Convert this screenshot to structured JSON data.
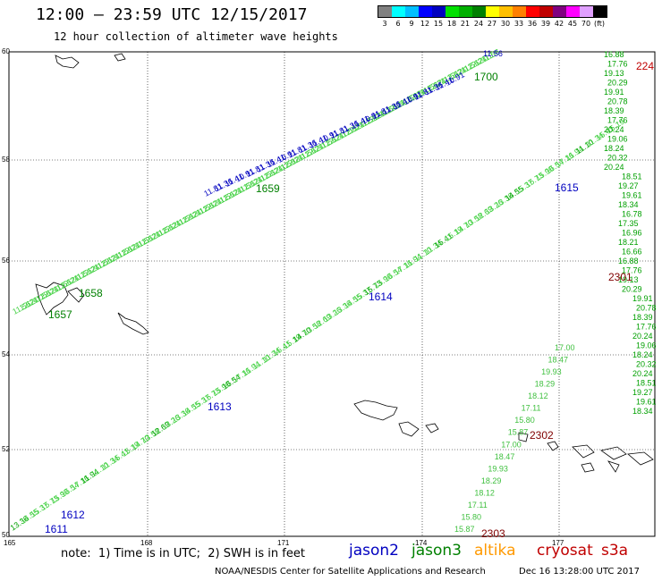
{
  "title": "12:00 – 23:59 UTC 12/15/2017",
  "subtitle": "12 hour collection of altimeter wave heights",
  "colorbar": {
    "colors": [
      "#808080",
      "#00ffff",
      "#00bfff",
      "#0000ff",
      "#0000c0",
      "#00e000",
      "#00b000",
      "#008000",
      "#ffff00",
      "#ffc000",
      "#ff8000",
      "#ff0000",
      "#c00000",
      "#800080",
      "#ff00ff",
      "#e0a0ff",
      "#000000"
    ],
    "labels": [
      "3",
      "6",
      "9",
      "12",
      "15",
      "18",
      "21",
      "24",
      "27",
      "30",
      "33",
      "36",
      "39",
      "42",
      "45",
      "70",
      "(ft)"
    ]
  },
  "axes": {
    "lat_labels": [
      "60",
      "58",
      "56",
      "54",
      "52",
      "50"
    ],
    "lon_labels": [
      "165",
      "168",
      "171",
      "174",
      "177"
    ]
  },
  "time_labels": [
    {
      "text": "1700",
      "sat": "jason3"
    },
    {
      "text": "1615",
      "sat": "jason2"
    },
    {
      "text": "1614",
      "sat": "jason2"
    },
    {
      "text": "1613",
      "sat": "jason2"
    },
    {
      "text": "1612",
      "sat": "jason2"
    },
    {
      "text": "1611",
      "sat": "jason2"
    },
    {
      "text": "1659",
      "sat": "jason3"
    },
    {
      "text": "1658",
      "sat": "jason3"
    },
    {
      "text": "1657",
      "sat": "jason3"
    },
    {
      "text": "2301",
      "sat": "cryosat"
    },
    {
      "text": "2302",
      "sat": "cryosat"
    },
    {
      "text": "2303",
      "sat": "cryosat"
    },
    {
      "text": "224",
      "sat": "s3a"
    }
  ],
  "swh_values": {
    "track_upper_top": [
      "11.56",
      "12.24",
      "12.12"
    ],
    "track_lower": [
      "13.36",
      "14.55",
      "15.37",
      "15.73",
      "15.90",
      "16.54",
      "17.16",
      "11.94",
      "11.10",
      "11.34",
      "15.41",
      "15.19",
      "14.70",
      "13.58",
      "12.69",
      "13.26"
    ],
    "track_east": [
      "16.88",
      "17.76",
      "19.13",
      "20.29",
      "19.91",
      "20.78",
      "18.39",
      "17.76",
      "20.24",
      "19.06",
      "18.24",
      "20.32",
      "20.24",
      "18.51",
      "19.27",
      "19.61",
      "18.34",
      "16.78",
      "17.35",
      "16.96",
      "18.21",
      "16.66"
    ],
    "track_south": [
      "17.00",
      "18.47",
      "19.93",
      "18.29",
      "18.12",
      "17.11",
      "15.80",
      "15.87"
    ],
    "track_upper_mid": [
      "11.81",
      "11.36",
      "11.41",
      "10.91"
    ]
  },
  "legend": {
    "note": "note:  1) Time is in UTC;  2) SWH is in feet",
    "jason2": "jason2",
    "jason3": "jason3",
    "altika": "altika",
    "cryosat": "cryosat",
    "s3a": "s3a",
    "colors": {
      "jason2": "#0000c0",
      "jason3": "#008000",
      "altika": "#ff9900",
      "cryosat": "#c00000",
      "s3a": "#c00000"
    }
  },
  "credit": "NOAA/NESDIS Center for Satellite Applications and Research",
  "generated": "Dec 16 13:28:00 UTC 2017"
}
